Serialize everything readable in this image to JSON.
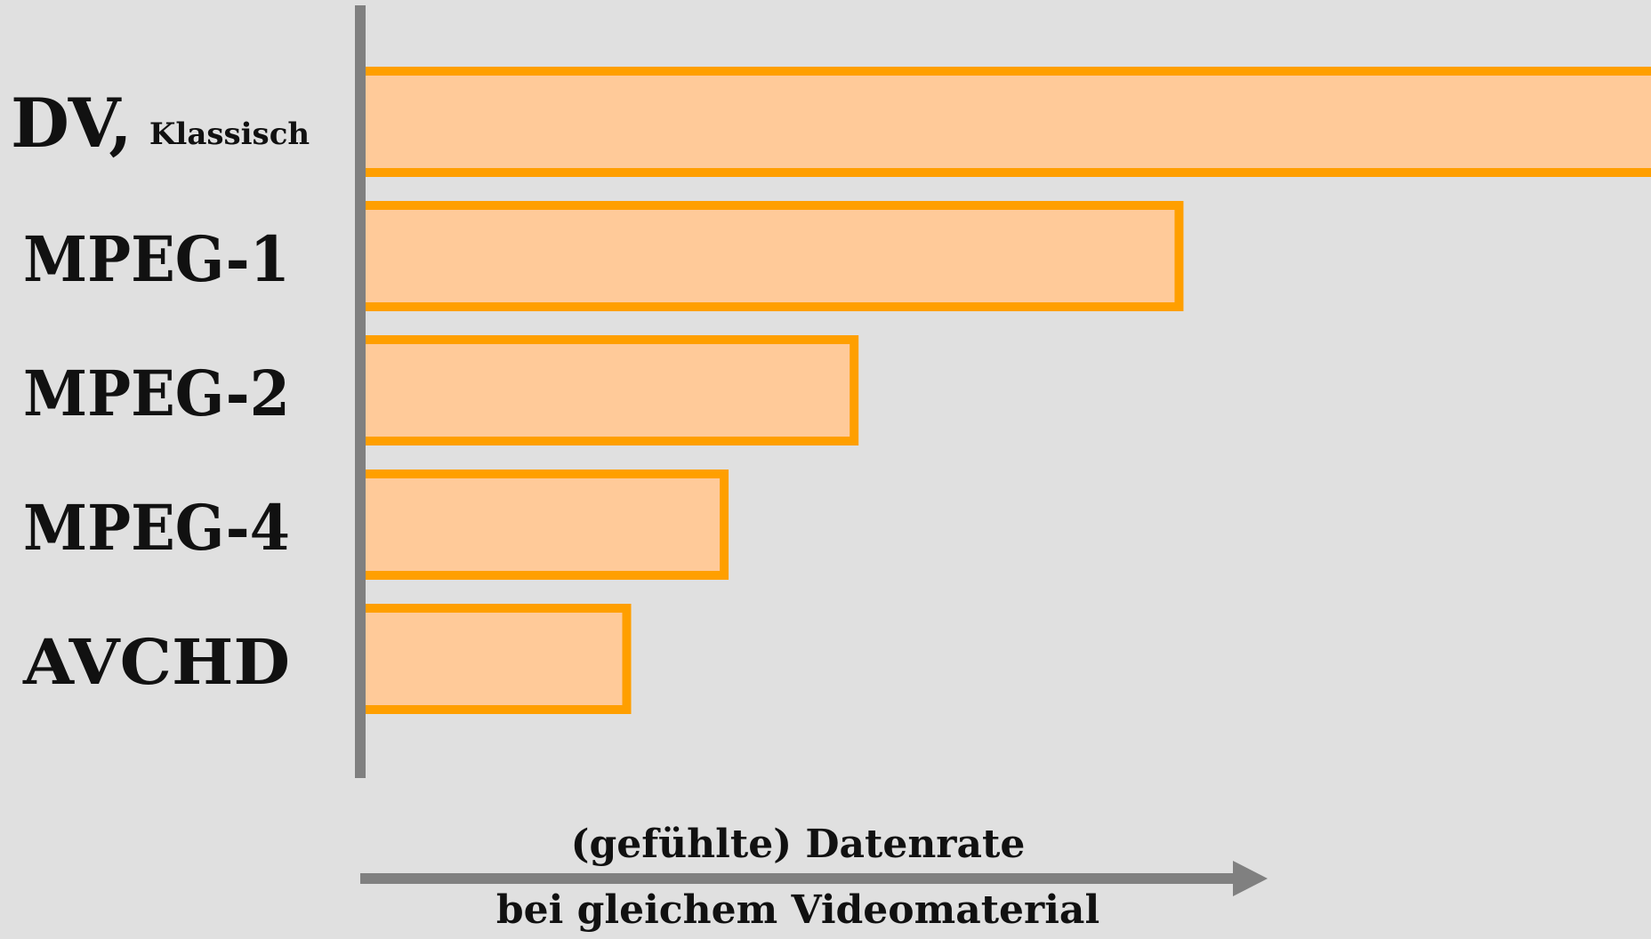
{
  "chart_data": {
    "type": "bar",
    "orientation": "horizontal",
    "categories": [
      "DV,",
      "MPEG-1",
      "MPEG-2",
      "MPEG-4",
      "AVCHD"
    ],
    "category_sublabels": [
      "Klassisch",
      "",
      "",
      "",
      ""
    ],
    "values": [
      100,
      63,
      38,
      28,
      20.5
    ],
    "xlim": [
      0,
      100
    ],
    "xlabel_line1": "(gefühlte) Datenrate",
    "xlabel_line2": "bei gleichem Videomaterial",
    "title": "",
    "grid": false,
    "legend": "none",
    "colors": {
      "bar_fill": "#ffca99",
      "bar_stroke": "#ff9f00",
      "axis": "#808080",
      "background": "#e0e0e0",
      "text": "#111111"
    }
  }
}
